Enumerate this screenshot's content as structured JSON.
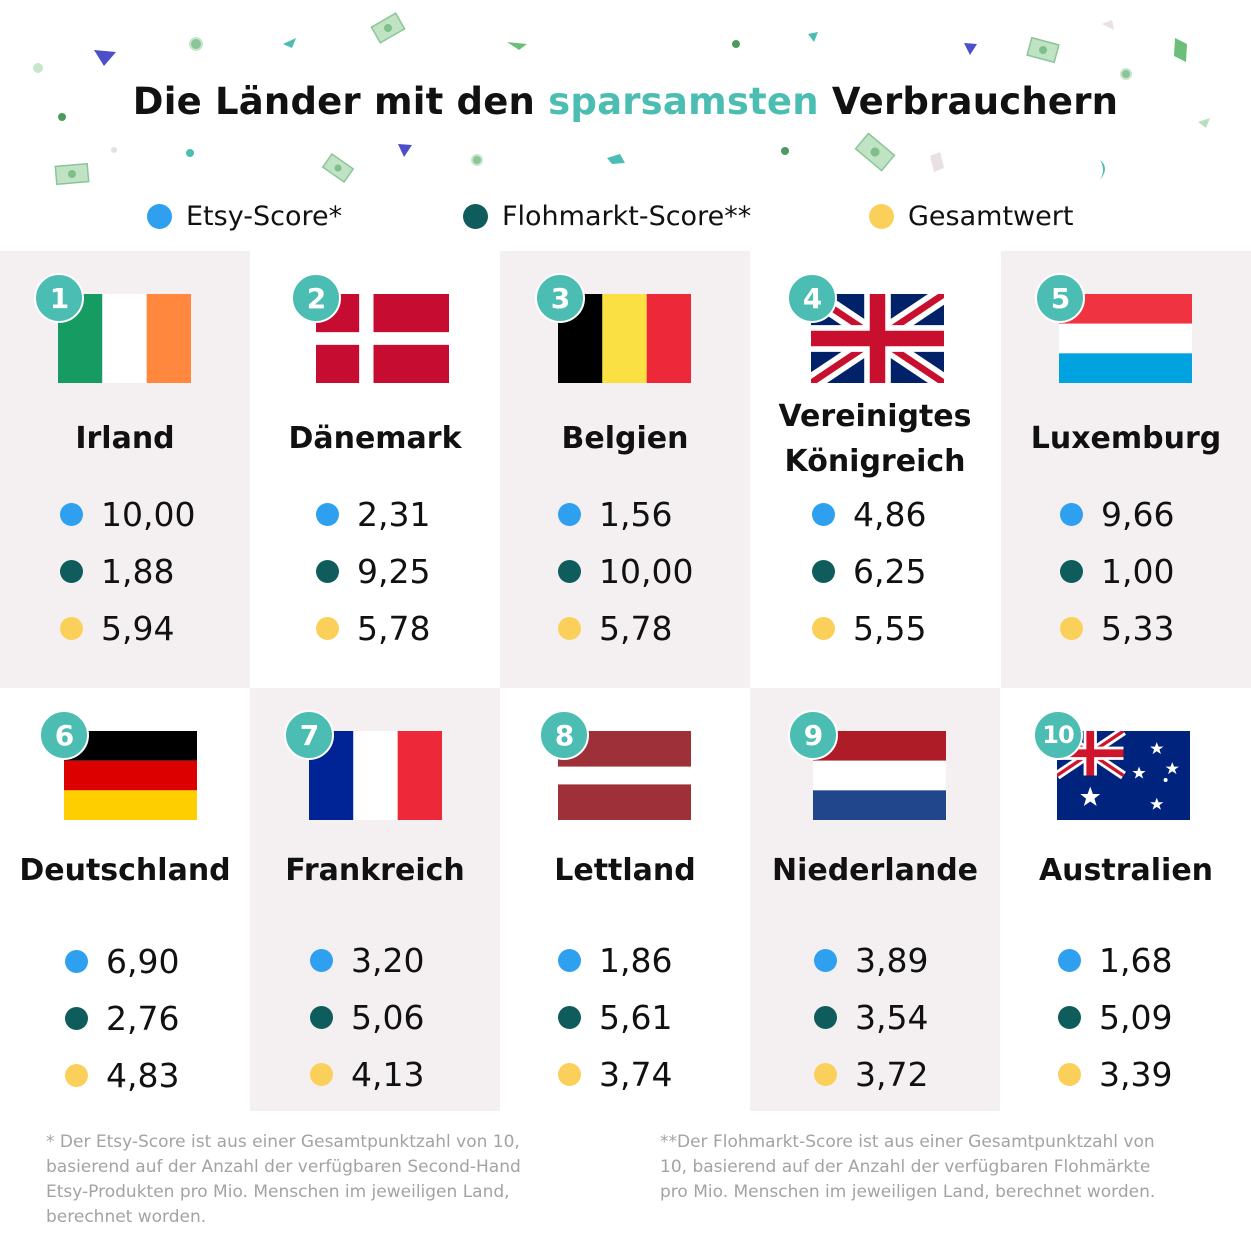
{
  "title": {
    "before": "Die Länder mit den ",
    "highlight": "sparsamsten",
    "after": " Verbrauchern"
  },
  "legend": {
    "etsy": "Etsy-Score*",
    "flohmarkt": "Flohmarkt-Score**",
    "gesamt": "Gesamtwert"
  },
  "colors": {
    "accent": "#4cbdb3",
    "etsy": "#2f9ff0",
    "flohmarkt": "#0f5c5c",
    "gesamt": "#fbd05a",
    "cell_shade": "#f4f0f1"
  },
  "countries": [
    {
      "rank": "1",
      "name": "Irland",
      "flag": "ireland-flag-icon",
      "etsy": "10,00",
      "flohmarkt": "1,88",
      "gesamt": "5,94"
    },
    {
      "rank": "2",
      "name": "Dänemark",
      "flag": "denmark-flag-icon",
      "etsy": "2,31",
      "flohmarkt": "9,25",
      "gesamt": "5,78"
    },
    {
      "rank": "3",
      "name": "Belgien",
      "flag": "belgium-flag-icon",
      "etsy": "1,56",
      "flohmarkt": "10,00",
      "gesamt": "5,78"
    },
    {
      "rank": "4",
      "name": "Vereinigtes Königreich",
      "flag": "uk-flag-icon",
      "etsy": "4,86",
      "flohmarkt": "6,25",
      "gesamt": "5,55"
    },
    {
      "rank": "5",
      "name": "Luxemburg",
      "flag": "luxembourg-flag-icon",
      "etsy": "9,66",
      "flohmarkt": "1,00",
      "gesamt": "5,33"
    },
    {
      "rank": "6",
      "name": "Deutschland",
      "flag": "germany-flag-icon",
      "etsy": "6,90",
      "flohmarkt": "2,76",
      "gesamt": "4,83"
    },
    {
      "rank": "7",
      "name": "Frankreich",
      "flag": "france-flag-icon",
      "etsy": "3,20",
      "flohmarkt": "5,06",
      "gesamt": "4,13"
    },
    {
      "rank": "8",
      "name": "Lettland",
      "flag": "latvia-flag-icon",
      "etsy": "1,86",
      "flohmarkt": "5,61",
      "gesamt": "3,74"
    },
    {
      "rank": "9",
      "name": "Niederlande",
      "flag": "netherlands-flag-icon",
      "etsy": "3,89",
      "flohmarkt": "3,54",
      "gesamt": "3,72"
    },
    {
      "rank": "10",
      "name": "Australien",
      "flag": "australia-flag-icon",
      "etsy": "1,68",
      "flohmarkt": "5,09",
      "gesamt": "3,39"
    }
  ],
  "footnotes": {
    "etsy_lines": [
      "* Der Etsy-Score ist aus einer Gesamtpunktzahl von 10,",
      "basierend auf der Anzahl der verfügbaren Second-Hand",
      "Etsy-Produkten pro Mio. Menschen im jeweiligen Land,",
      "berechnet worden."
    ],
    "flohmarkt_lines": [
      "**Der Flohmarkt-Score ist aus einer Gesamtpunktzahl von",
      "10, basierend auf der Anzahl der verfügbaren Flohmärkte",
      "pro Mio. Menschen im jeweiligen Land, berechnet worden."
    ]
  }
}
